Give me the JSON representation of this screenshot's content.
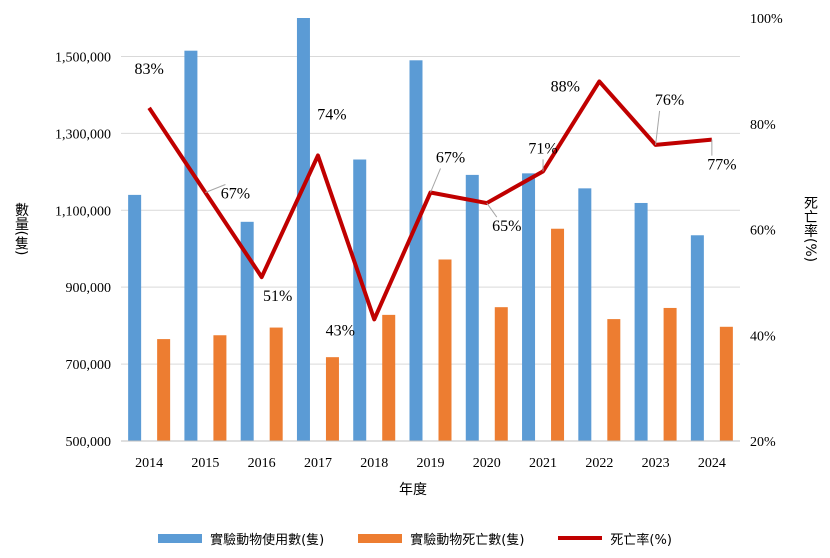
{
  "chart_data": {
    "type": "bar",
    "categories": [
      "2014",
      "2015",
      "2016",
      "2017",
      "2018",
      "2019",
      "2020",
      "2021",
      "2022",
      "2023",
      "2024"
    ],
    "series": [
      {
        "name": "實驗動物使用數(隻)",
        "type": "bar",
        "axis": "left",
        "color": "#5B9BD5",
        "values": [
          1140000,
          1515000,
          1070000,
          1600000,
          1232000,
          1490000,
          1192000,
          1196000,
          1157000,
          1119000,
          1035000
        ]
      },
      {
        "name": "實驗動物死亡數(隻)",
        "type": "bar",
        "axis": "left",
        "color": "#ED7D31",
        "values": [
          765000,
          775000,
          795000,
          718000,
          828000,
          972000,
          848000,
          1052000,
          817000,
          846000,
          797000
        ]
      },
      {
        "name": "死亡率(%)",
        "type": "line",
        "axis": "right",
        "color": "#C00000",
        "values": [
          83,
          67,
          51,
          74,
          43,
          67,
          65,
          71,
          88,
          76,
          77
        ]
      }
    ],
    "data_labels": [
      "83%",
      "67%",
      "51%",
      "74%",
      "43%",
      "67%",
      "65%",
      "71%",
      "88%",
      "76%",
      "77%"
    ],
    "y_left": {
      "label": "數量(隻)",
      "min": 500000,
      "max": 1600000,
      "ticks": [
        "500,000",
        "700,000",
        "900,000",
        "1,100,000",
        "1,300,000",
        "1,500,000"
      ],
      "tick_values": [
        500000,
        700000,
        900000,
        1100000,
        1300000,
        1500000
      ]
    },
    "y_right": {
      "label": "死亡率(%)",
      "min": 20,
      "max": 100,
      "ticks": [
        "20%",
        "40%",
        "60%",
        "80%",
        "100%"
      ],
      "tick_values": [
        20,
        40,
        60,
        80,
        100
      ]
    },
    "xlabel": "年度",
    "legend_position": "bottom",
    "grid": true
  }
}
